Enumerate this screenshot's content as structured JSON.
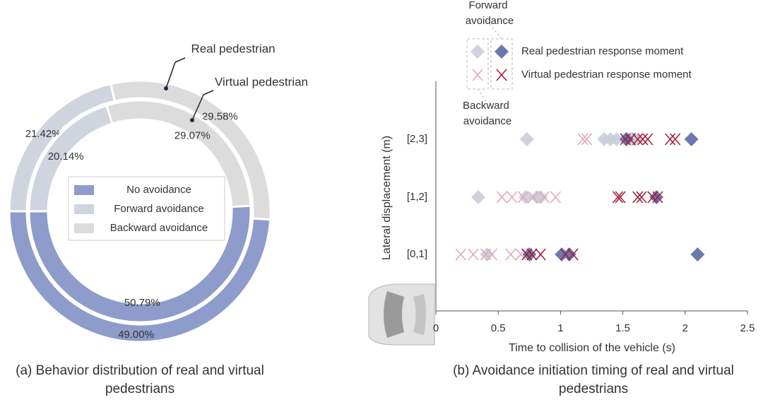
{
  "chart_data": [
    {
      "type": "donut",
      "categories": [
        "No avoidance",
        "Forward avoidance",
        "Backward avoidance"
      ],
      "colors": [
        "#8e9ccb",
        "#d0d4de",
        "#dcdcdc"
      ],
      "series": [
        {
          "name": "Real pedestrian",
          "values": [
            49.0,
            21.42,
            29.58
          ],
          "value_labels": [
            "49.00%",
            "21.42%",
            "29.58%"
          ]
        },
        {
          "name": "Virtual pedestrian",
          "values": [
            50.79,
            20.14,
            29.07
          ],
          "value_labels": [
            "50.79%",
            "20.14%",
            "29.07%"
          ]
        }
      ],
      "caption": "(a) Behavior distribution of real and virtual pedestrians"
    },
    {
      "type": "scatter",
      "x_label": "Time to collision of the vehicle (s)",
      "y_label": "Lateral displacement (m)",
      "categories": [
        "[0,1]",
        "[1,2]",
        "[2,3]"
      ],
      "xlim": [
        0,
        2.5
      ],
      "xticks": [
        0,
        0.5,
        1,
        1.5,
        2,
        2.5
      ],
      "legend_columns": [
        "Forward avoidance",
        "Backward avoidance"
      ],
      "series": [
        {
          "name": "Real pedestrian response moment",
          "marker": "diamond",
          "groups": [
            {
              "color": "#c9cdd9",
              "x": [
                [
                  0.41
                ],
                [
                  0.34,
                  0.72,
                  0.81,
                  0.84
                ],
                [
                  0.73,
                  1.35,
                  1.4,
                  1.45,
                  1.52,
                  1.57,
                  1.6
                ]
              ]
            },
            {
              "color": "#5b6aa9",
              "x": [
                [
                  0.75,
                  1.01,
                  1.07,
                  2.1
                ],
                [
                  1.77
                ],
                [
                  1.53,
                  2.05
                ]
              ]
            }
          ]
        },
        {
          "name": "Virtual pedestrian response moment",
          "marker": "cross",
          "groups": [
            {
              "color": "#e3a8b8",
              "x": [
                [
                  0.2,
                  0.3,
                  0.4,
                  0.45,
                  0.6,
                  0.68
                ],
                [
                  0.53,
                  0.61,
                  0.7,
                  0.78,
                  0.87,
                  0.96
                ],
                [
                  1.18,
                  1.21
                ]
              ]
            },
            {
              "color": "#a3203d",
              "x": [
                [
                  0.73,
                  0.77,
                  0.84,
                  1.04,
                  1.1
                ],
                [
                  1.46,
                  1.48,
                  1.62,
                  1.65,
                  1.74,
                  1.78
                ],
                [
                  1.52,
                  1.56,
                  1.62,
                  1.66,
                  1.7,
                  1.88,
                  1.92
                ]
              ]
            }
          ]
        }
      ],
      "caption": "(b) Avoidance initiation timing of real and virtual pedestrians"
    }
  ]
}
